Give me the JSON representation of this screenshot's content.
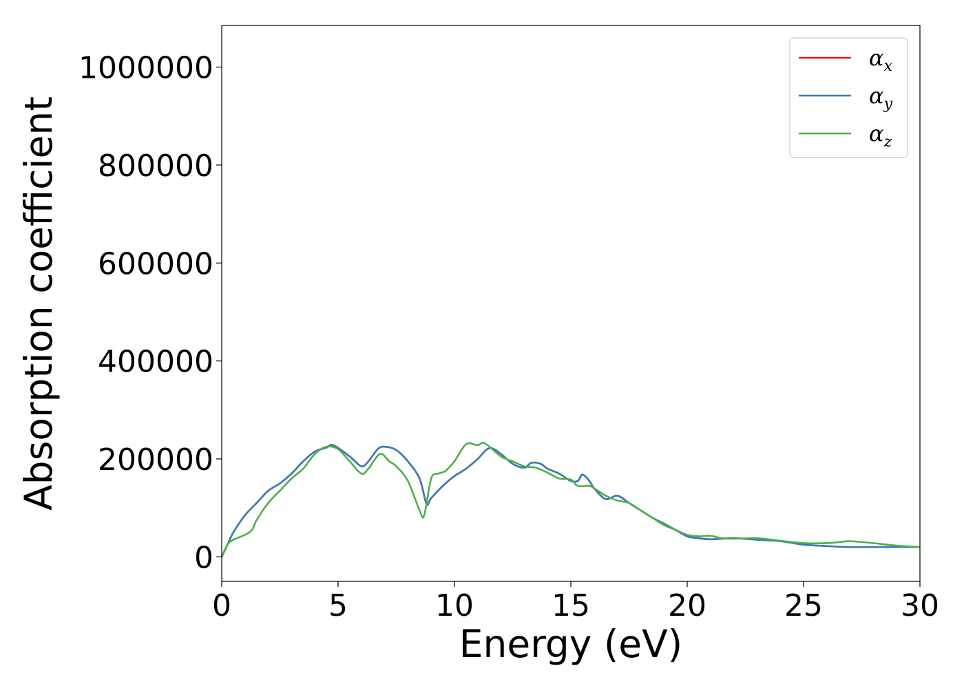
{
  "chart_data": {
    "type": "line",
    "title": "",
    "xlabel": "Energy (eV)",
    "ylabel": "Absorption coefficient",
    "xlim": [
      0,
      30
    ],
    "ylim": [
      -50000,
      1085000
    ],
    "xticks": [
      0,
      5,
      10,
      15,
      20,
      25,
      30
    ],
    "xtick_labels": [
      "0",
      "5",
      "10",
      "15",
      "20",
      "25",
      "30"
    ],
    "yticks": [
      0,
      200000,
      400000,
      600000,
      800000,
      1000000
    ],
    "ytick_labels": [
      "0",
      "200000",
      "400000",
      "600000",
      "800000",
      "1000000"
    ],
    "grid": false,
    "legend_position": "top-right",
    "series": [
      {
        "name": "αx",
        "legend_symbol": "α",
        "legend_subscript": "x",
        "color": "#e41a1c",
        "x": [
          0,
          0.25,
          0.5,
          1,
          1.5,
          2,
          2.5,
          3,
          3.5,
          4,
          4.5,
          4.8,
          5.5,
          6,
          6.3,
          6.7,
          7,
          7.5,
          8,
          8.5,
          8.8,
          9,
          9.5,
          10,
          10.5,
          11,
          11.5,
          12,
          12.5,
          13,
          13.3,
          13.7,
          14,
          14.5,
          15,
          15.3,
          15.5,
          15.8,
          16,
          16.5,
          17,
          17.5,
          18,
          18.5,
          19,
          19.5,
          20,
          20.5,
          21,
          22,
          23,
          24,
          25,
          26,
          27,
          28,
          29,
          30
        ],
        "y": [
          0,
          25000,
          50000,
          85000,
          110000,
          135000,
          150000,
          170000,
          195000,
          215000,
          223000,
          228000,
          205000,
          185000,
          195000,
          220000,
          225000,
          218000,
          195000,
          160000,
          108000,
          120000,
          145000,
          165000,
          180000,
          200000,
          222000,
          210000,
          190000,
          182000,
          192000,
          190000,
          180000,
          170000,
          155000,
          155000,
          168000,
          155000,
          140000,
          118000,
          125000,
          110000,
          95000,
          80000,
          68000,
          55000,
          42000,
          38000,
          36000,
          38000,
          35000,
          32000,
          25000,
          22000,
          20000,
          20000,
          20000,
          20000
        ]
      },
      {
        "name": "αy",
        "legend_symbol": "α",
        "legend_subscript": "y",
        "color": "#377eb8",
        "x": [
          0,
          0.25,
          0.5,
          1,
          1.5,
          2,
          2.5,
          3,
          3.5,
          4,
          4.5,
          4.8,
          5.5,
          6,
          6.3,
          6.7,
          7,
          7.5,
          8,
          8.5,
          8.8,
          9,
          9.5,
          10,
          10.5,
          11,
          11.5,
          12,
          12.5,
          13,
          13.3,
          13.7,
          14,
          14.5,
          15,
          15.3,
          15.5,
          15.8,
          16,
          16.5,
          17,
          17.5,
          18,
          18.5,
          19,
          19.5,
          20,
          20.5,
          21,
          22,
          23,
          24,
          25,
          26,
          27,
          28,
          29,
          30
        ],
        "y": [
          0,
          25000,
          50000,
          85000,
          110000,
          135000,
          150000,
          170000,
          195000,
          215000,
          223000,
          228000,
          205000,
          185000,
          195000,
          220000,
          225000,
          218000,
          195000,
          160000,
          108000,
          120000,
          145000,
          165000,
          180000,
          200000,
          222000,
          210000,
          190000,
          182000,
          192000,
          190000,
          180000,
          170000,
          155000,
          155000,
          168000,
          155000,
          140000,
          118000,
          125000,
          110000,
          95000,
          80000,
          68000,
          55000,
          42000,
          38000,
          36000,
          38000,
          35000,
          32000,
          25000,
          22000,
          20000,
          20000,
          20000,
          20000
        ]
      },
      {
        "name": "αz",
        "legend_symbol": "α",
        "legend_subscript": "z",
        "color": "#4daf4a",
        "x": [
          0,
          0.25,
          0.5,
          1,
          1.3,
          1.5,
          2,
          2.5,
          3,
          3.5,
          4,
          4.5,
          5,
          5.5,
          6,
          6.3,
          6.8,
          7.2,
          7.5,
          8,
          8.5,
          8.7,
          9,
          9.3,
          9.6,
          10,
          10.5,
          11,
          11.3,
          12,
          12.5,
          13,
          13.5,
          14,
          14.5,
          15,
          15.3,
          15.8,
          16,
          16.5,
          17,
          17.5,
          18,
          18.5,
          19,
          19.5,
          20,
          20.5,
          21,
          21.5,
          22,
          23,
          24,
          25,
          26,
          26.5,
          27,
          28,
          29,
          30
        ],
        "y": [
          0,
          25000,
          35000,
          45000,
          55000,
          75000,
          110000,
          135000,
          160000,
          180000,
          210000,
          225000,
          220000,
          195000,
          170000,
          180000,
          210000,
          195000,
          185000,
          155000,
          95000,
          85000,
          160000,
          170000,
          175000,
          195000,
          230000,
          228000,
          232000,
          205000,
          195000,
          185000,
          182000,
          172000,
          160000,
          158000,
          145000,
          145000,
          140000,
          125000,
          115000,
          110000,
          95000,
          80000,
          65000,
          55000,
          45000,
          42000,
          43000,
          38000,
          37000,
          38000,
          33000,
          28000,
          28000,
          30000,
          32000,
          28000,
          23000,
          20000
        ]
      }
    ]
  }
}
